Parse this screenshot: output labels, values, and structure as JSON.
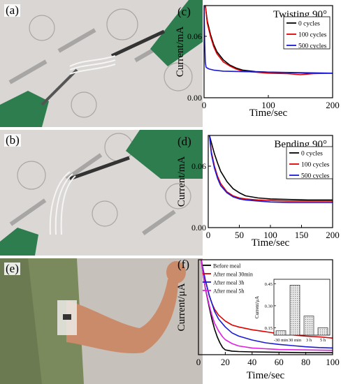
{
  "panels": {
    "a": {
      "label": "(a)"
    },
    "b": {
      "label": "(b)"
    },
    "e": {
      "label": "(e)"
    }
  },
  "chart_data": [
    {
      "id": "c",
      "panel_label": "(c)",
      "type": "line",
      "annotation": "Twisting 90°",
      "xlabel": "Time/sec",
      "ylabel": "Current/mA",
      "xlim": [
        0,
        200
      ],
      "ylim": [
        0,
        0.09
      ],
      "xticks": [
        0,
        100,
        200
      ],
      "yticks": [
        0.0,
        0.06
      ],
      "ytick_labels": [
        "0.00",
        "0.06"
      ],
      "legend_position": "top-right",
      "series": [
        {
          "name": "0    cycles",
          "color": "#000000",
          "x": [
            2,
            5,
            10,
            15,
            20,
            30,
            40,
            50,
            60,
            80,
            100,
            130,
            160,
            200
          ],
          "y": [
            0.09,
            0.075,
            0.062,
            0.052,
            0.045,
            0.037,
            0.032,
            0.029,
            0.027,
            0.0255,
            0.025,
            0.0245,
            0.024,
            0.024
          ]
        },
        {
          "name": "100 cycles",
          "color": "#e00000",
          "x": [
            2,
            5,
            10,
            15,
            20,
            30,
            40,
            50,
            60,
            80,
            100,
            130,
            150,
            170,
            200
          ],
          "y": [
            0.09,
            0.073,
            0.06,
            0.05,
            0.043,
            0.035,
            0.031,
            0.028,
            0.026,
            0.025,
            0.024,
            0.0235,
            0.0225,
            0.0235,
            0.024
          ]
        },
        {
          "name": "500 cycles",
          "color": "#1a1ad6",
          "x": [
            0,
            1,
            2,
            3,
            5,
            8,
            15,
            30,
            60,
            100,
            150,
            200
          ],
          "y": [
            0.09,
            0.055,
            0.035,
            0.03,
            0.029,
            0.028,
            0.027,
            0.026,
            0.0255,
            0.025,
            0.0245,
            0.024
          ]
        }
      ]
    },
    {
      "id": "d",
      "panel_label": "(d)",
      "type": "line",
      "annotation": "Bending 90°",
      "xlabel": "Time/sec",
      "ylabel": "Current/mA",
      "xlim": [
        0,
        200
      ],
      "ylim": [
        0,
        0.09
      ],
      "xticks": [
        0,
        50,
        100,
        150,
        200
      ],
      "yticks": [
        0.0,
        0.06
      ],
      "ytick_labels": [
        "0.00",
        "0.06"
      ],
      "legend_position": "top-right",
      "series": [
        {
          "name": "0    cycles",
          "color": "#000000",
          "x": [
            2,
            5,
            10,
            15,
            20,
            30,
            40,
            50,
            60,
            80,
            100,
            130,
            160,
            200
          ],
          "y": [
            0.09,
            0.083,
            0.072,
            0.063,
            0.055,
            0.045,
            0.038,
            0.034,
            0.031,
            0.029,
            0.028,
            0.0275,
            0.027,
            0.027
          ]
        },
        {
          "name": "100 cycles",
          "color": "#e00000",
          "x": [
            2,
            5,
            10,
            15,
            20,
            30,
            40,
            50,
            60,
            80,
            100,
            130,
            160,
            200
          ],
          "y": [
            0.09,
            0.074,
            0.06,
            0.05,
            0.043,
            0.035,
            0.031,
            0.029,
            0.028,
            0.027,
            0.0265,
            0.026,
            0.026,
            0.026
          ]
        },
        {
          "name": "500 cycles",
          "color": "#1a1ad6",
          "x": [
            2,
            5,
            10,
            15,
            20,
            30,
            40,
            50,
            60,
            80,
            100,
            130,
            160,
            200
          ],
          "y": [
            0.09,
            0.072,
            0.058,
            0.048,
            0.041,
            0.034,
            0.03,
            0.028,
            0.027,
            0.026,
            0.025,
            0.0245,
            0.0245,
            0.0245
          ]
        }
      ]
    },
    {
      "id": "f",
      "panel_label": "(f)",
      "type": "line",
      "xlabel": "Time/sec",
      "ylabel": "Current/μA",
      "xlim": [
        0,
        100
      ],
      "ylim": [
        0,
        2.4
      ],
      "xticks": [
        0,
        20,
        40,
        60,
        80,
        100
      ],
      "yticks": [],
      "legend_position": "top-left",
      "series": [
        {
          "name": "Before meal",
          "color": "#000000",
          "x": [
            2,
            5,
            8,
            10,
            12,
            14,
            16,
            18,
            20,
            25,
            30,
            40,
            60,
            80,
            100
          ],
          "y": [
            2.4,
            1.7,
            1.2,
            0.9,
            0.65,
            0.45,
            0.3,
            0.18,
            0.12,
            0.09,
            0.08,
            0.07,
            0.06,
            0.05,
            0.05
          ]
        },
        {
          "name": "After meal 30min",
          "color": "#e00000",
          "x": [
            2,
            5,
            8,
            10,
            12,
            15,
            20,
            25,
            30,
            40,
            50,
            60,
            70,
            80,
            90,
            100
          ],
          "y": [
            2.4,
            1.9,
            1.5,
            1.3,
            1.15,
            1.0,
            0.85,
            0.75,
            0.7,
            0.63,
            0.58,
            0.53,
            0.5,
            0.47,
            0.45,
            0.42
          ]
        },
        {
          "name": "After meal 3h",
          "color": "#1a1ad6",
          "x": [
            2,
            5,
            8,
            10,
            12,
            15,
            20,
            25,
            30,
            40,
            50,
            60,
            70,
            80,
            90,
            100
          ],
          "y": [
            2.4,
            1.9,
            1.5,
            1.3,
            1.1,
            0.9,
            0.7,
            0.55,
            0.47,
            0.37,
            0.3,
            0.26,
            0.23,
            0.2,
            0.18,
            0.17
          ]
        },
        {
          "name": "After meal 5h",
          "color": "#e020e0",
          "x": [
            2,
            5,
            8,
            10,
            12,
            15,
            18,
            20,
            25,
            30,
            40,
            60,
            80,
            100
          ],
          "y": [
            2.4,
            1.7,
            1.25,
            1.0,
            0.8,
            0.6,
            0.45,
            0.38,
            0.28,
            0.22,
            0.17,
            0.13,
            0.12,
            0.11
          ]
        }
      ],
      "inset": {
        "type": "bar",
        "ylabel": "Current/μA",
        "categories": [
          "-30 min",
          "30 min",
          "3 h",
          "5 h"
        ],
        "values": [
          0.13,
          0.44,
          0.23,
          0.15
        ],
        "ylim": [
          0.1,
          0.48
        ],
        "yticks": [
          0.15,
          0.3,
          0.45
        ],
        "ytick_labels": [
          "0.15",
          "0.30",
          "0.45"
        ]
      }
    }
  ]
}
